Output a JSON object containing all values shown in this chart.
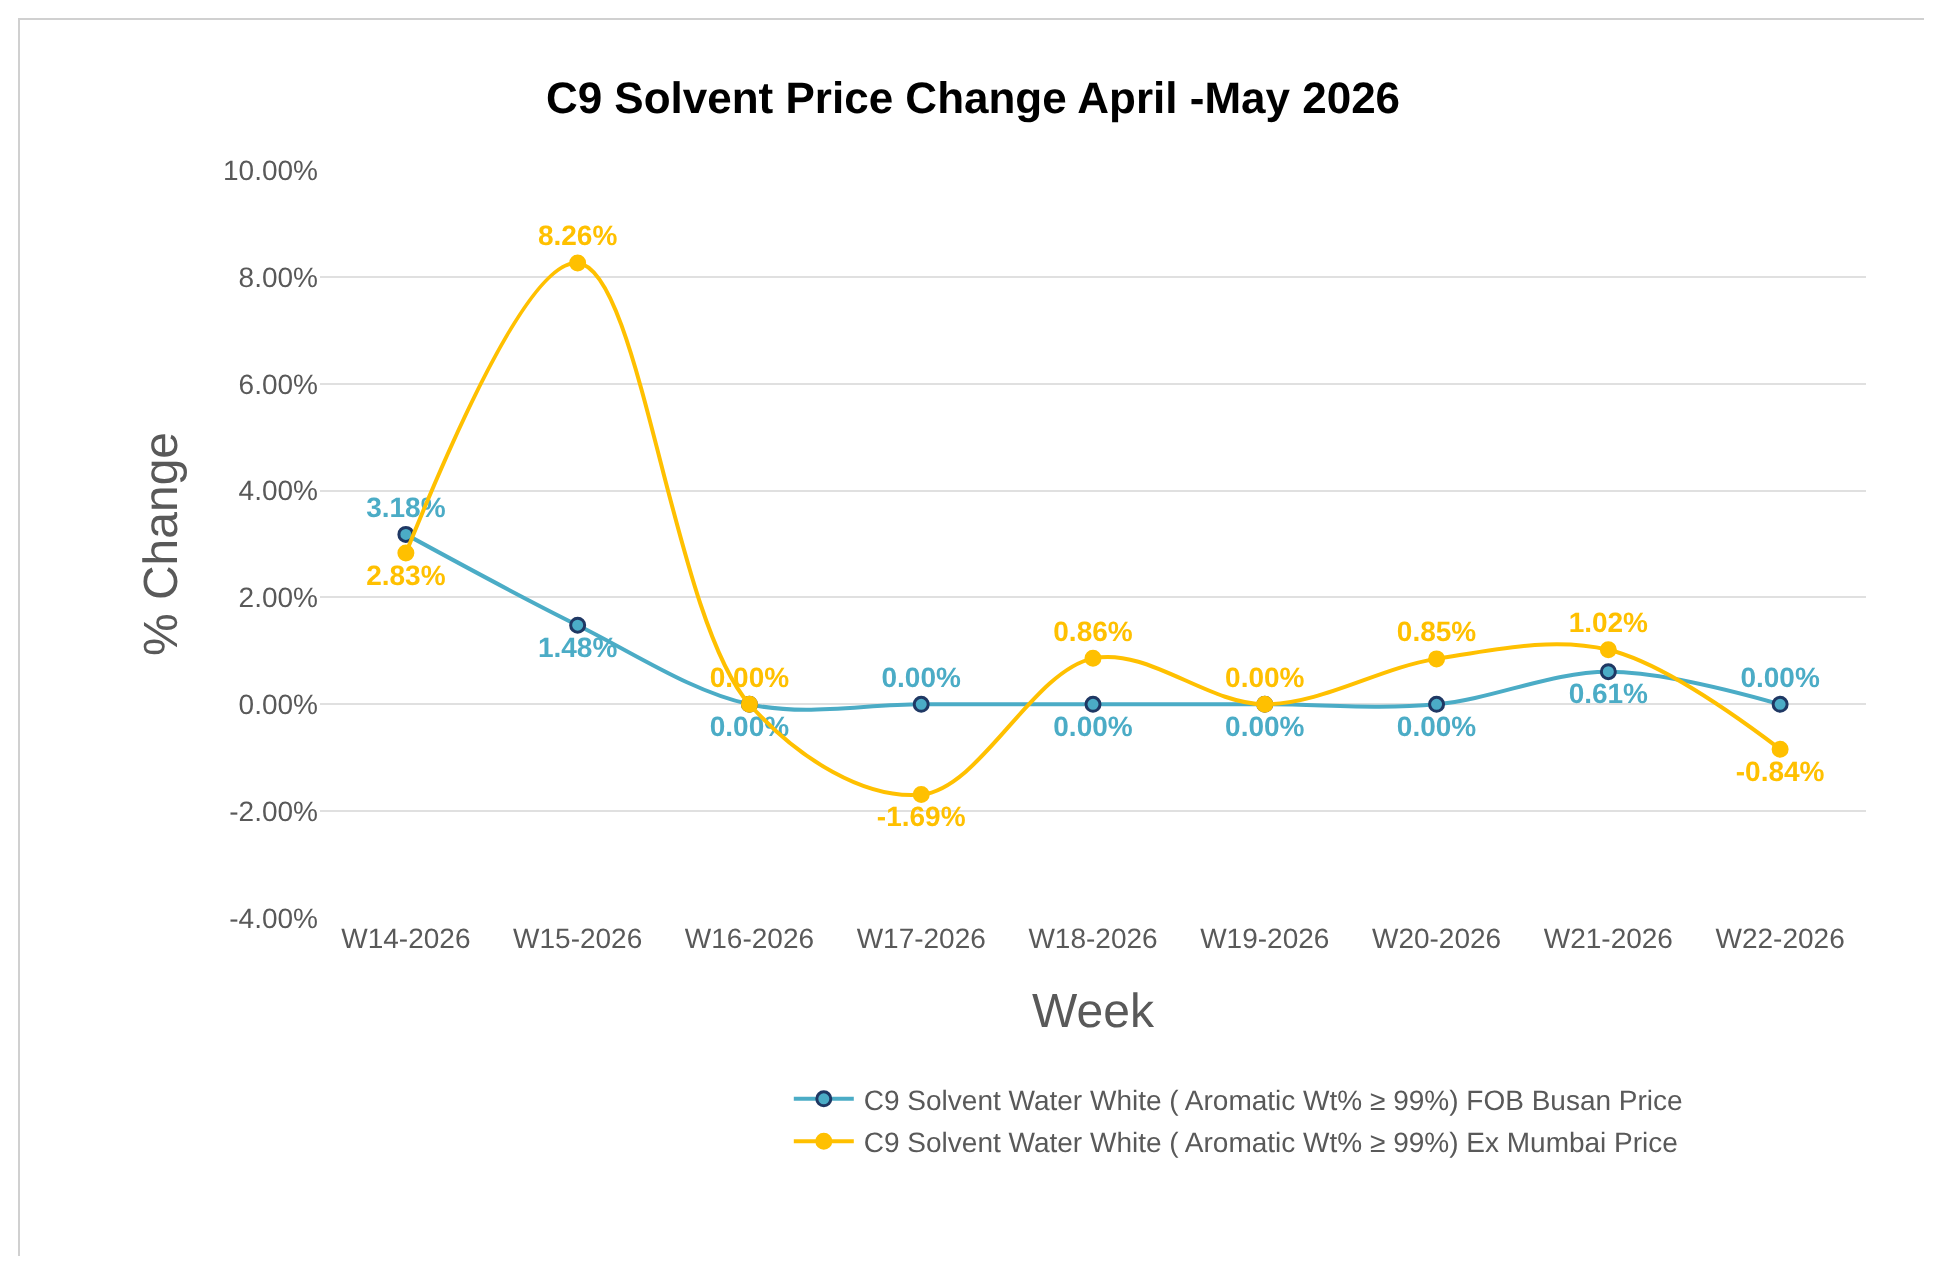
{
  "chart_data": {
    "type": "line",
    "title": "C9 Solvent Price Change April -May 2026",
    "xlabel": "Week",
    "ylabel": "% Change",
    "categories": [
      "W14-2026",
      "W15-2026",
      "W16-2026",
      "W17-2026",
      "W18-2026",
      "W19-2026",
      "W20-2026",
      "W21-2026",
      "W22-2026"
    ],
    "series": [
      {
        "name": "C9 Solvent Water White ( Aromatic Wt% ≥ 99%) FOB Busan Price",
        "color": "#4bacc6",
        "values": [
          3.18,
          1.48,
          0,
          0,
          0,
          0,
          0,
          0.61,
          0
        ],
        "value_labels": [
          "3.18%",
          "1.48%",
          "0.00%",
          "0.00%",
          "0.00%",
          "0.00%",
          "0.00%",
          "0.61%",
          "0.00%"
        ]
      },
      {
        "name": "C9 Solvent Water White ( Aromatic Wt% ≥ 99%) Ex Mumbai Price",
        "color": "#ffc000",
        "values": [
          2.83,
          8.26,
          0,
          -1.69,
          0.86,
          0,
          0.85,
          1.02,
          -0.84
        ],
        "value_labels": [
          "2.83%",
          "8.26%",
          "0.00%",
          "-1.69%",
          "0.86%",
          "0.00%",
          "0.85%",
          "1.02%",
          "-0.84%"
        ]
      }
    ],
    "ylim": [
      -4,
      10
    ],
    "yticks": [
      {
        "value": -4,
        "label": "-4.00%"
      },
      {
        "value": -2,
        "label": "-2.00%"
      },
      {
        "value": 0,
        "label": "0.00%"
      },
      {
        "value": 2,
        "label": "2.00%"
      },
      {
        "value": 4,
        "label": "4.00%"
      },
      {
        "value": 6,
        "label": "6.00%"
      },
      {
        "value": 8,
        "label": "8.00%"
      },
      {
        "value": 10,
        "label": "10.00%"
      }
    ],
    "grid": "y",
    "legend": "bottom",
    "marker": "circle",
    "line_style": "solid"
  }
}
